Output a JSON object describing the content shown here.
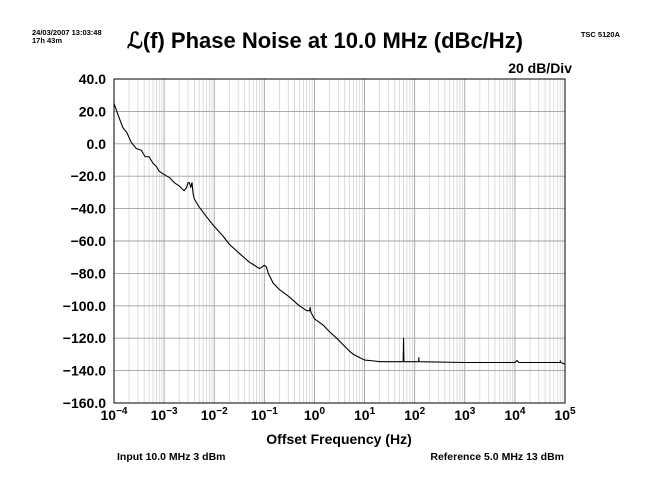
{
  "header": {
    "timestamp": "24/03/2007 13:03:48",
    "elapsed": "17h 43m",
    "instrument": "TSC 5120A",
    "title": "ℒ(f) Phase Noise at 10.0 MHz (dBc/Hz)",
    "scale": "20 dB/Div"
  },
  "footer": {
    "input": "Input 10.0 MHz 3 dBm",
    "reference": "Reference 5.0 MHz 13 dBm"
  },
  "chart_data": {
    "type": "line",
    "title": "ℒ(f) Phase Noise at 10.0 MHz (dBc/Hz)",
    "xlabel": "Offset Frequency (Hz)",
    "ylabel": "",
    "x_scale": "log",
    "x_range_log10": [
      -4,
      5
    ],
    "xlim": [
      0.0001,
      100000
    ],
    "ylim": [
      -160,
      40
    ],
    "grid": true,
    "x_ticks": [
      {
        "base": "10",
        "exp": "−4"
      },
      {
        "base": "10",
        "exp": "−3"
      },
      {
        "base": "10",
        "exp": "−2"
      },
      {
        "base": "10",
        "exp": "−1"
      },
      {
        "base": "10",
        "exp": "0"
      },
      {
        "base": "10",
        "exp": "1"
      },
      {
        "base": "10",
        "exp": "2"
      },
      {
        "base": "10",
        "exp": "3"
      },
      {
        "base": "10",
        "exp": "4"
      },
      {
        "base": "10",
        "exp": "5"
      }
    ],
    "y_ticks": [
      "40.0",
      "20.0",
      "0.0",
      "−20.0",
      "−40.0",
      "−60.0",
      "−80.0",
      "−100.0",
      "−120.0",
      "−140.0",
      "−160.0"
    ],
    "series": [
      {
        "x": [
          0.0001,
          0.00012,
          0.00015,
          0.00018,
          0.00022,
          0.00028,
          0.00035,
          0.00042,
          0.0005,
          0.0006,
          0.0007,
          0.0008,
          0.001,
          0.0013,
          0.0016,
          0.002,
          0.0025,
          0.0028,
          0.003,
          0.0032,
          0.0034,
          0.0036,
          0.0038,
          0.004,
          0.005,
          0.007,
          0.01,
          0.015,
          0.02,
          0.03,
          0.05,
          0.08,
          0.09,
          0.1,
          0.11,
          0.12,
          0.15,
          0.2,
          0.3,
          0.5,
          0.7,
          0.8,
          0.82,
          0.85,
          1,
          1.5,
          2,
          3,
          4,
          5,
          6,
          8,
          10,
          15,
          20,
          40,
          59,
          60,
          61,
          100,
          120,
          121,
          122,
          1000,
          10000,
          11000,
          12000,
          13000,
          50000,
          80000,
          81000,
          82000,
          100000
        ],
        "y": [
          25,
          18,
          10,
          7,
          1,
          -3,
          -4,
          -8,
          -8,
          -12,
          -14,
          -17,
          -19,
          -21,
          -24,
          -26,
          -29,
          -27,
          -24,
          -24,
          -27,
          -24,
          -31,
          -34,
          -39,
          -45,
          -51,
          -57,
          -62,
          -67,
          -73,
          -77,
          -76,
          -75,
          -76,
          -80,
          -86,
          -90,
          -94,
          -100,
          -103,
          -103,
          -101,
          -104,
          -108,
          -112,
          -116,
          -121,
          -125,
          -128,
          -130,
          -132,
          -133.5,
          -134,
          -134.5,
          -134.5,
          -134.5,
          -120,
          -134.5,
          -134.5,
          -134.5,
          -132,
          -134.5,
          -135,
          -135,
          -133.8,
          -135,
          -135,
          -135,
          -135,
          -134,
          -135,
          -136
        ]
      }
    ]
  }
}
